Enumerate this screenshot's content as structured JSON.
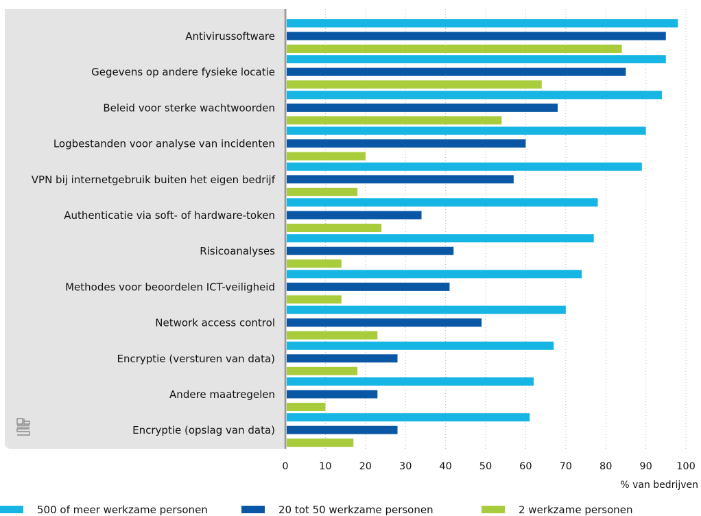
{
  "chart_data": {
    "type": "bar",
    "orientation": "horizontal",
    "categories": [
      "Antivirussoftware",
      "Gegevens op andere fysieke locatie",
      "Beleid voor sterke wachtwoorden",
      "Logbestanden voor analyse van incidenten",
      "VPN bij internetgebruik buiten het eigen bedrijf",
      "Authenticatie via soft- of hardware-token",
      "Risicoanalyses",
      "Methodes voor beoordelen ICT-veiligheid",
      "Network access control",
      "Encryptie (versturen van data)",
      "Andere maatregelen",
      "Encryptie (opslag van data)"
    ],
    "series": [
      {
        "name": "500 of meer werkzame personen",
        "color": "#16b5e3",
        "values": [
          98,
          95,
          94,
          90,
          89,
          78,
          77,
          74,
          70,
          67,
          62,
          61
        ]
      },
      {
        "name": "20 tot 50 werkzame personen",
        "color": "#0a58a5",
        "values": [
          95,
          85,
          68,
          60,
          57,
          34,
          42,
          41,
          49,
          28,
          23,
          28
        ]
      },
      {
        "name": "2 werkzame personen",
        "color": "#a8cc3c",
        "values": [
          84,
          64,
          54,
          20,
          18,
          24,
          14,
          14,
          23,
          18,
          10,
          17
        ]
      }
    ],
    "xlim": [
      0,
      100
    ],
    "xticks": [
      "0",
      "10",
      "20",
      "30",
      "40",
      "50",
      "60",
      "70",
      "80",
      "90",
      "100"
    ],
    "xlabel": "% van bedrijven",
    "grid": "vertical dotted",
    "legend_position": "bottom"
  }
}
